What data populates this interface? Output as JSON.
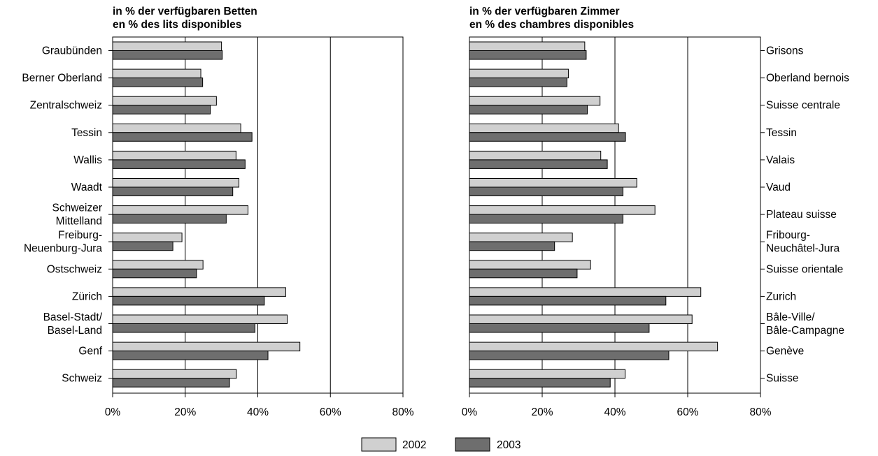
{
  "colors": {
    "s2002": "#d0d0d0",
    "s2003": "#6e6e6e",
    "stroke": "#000000"
  },
  "chart_data": [
    {
      "type": "bar",
      "orientation": "horizontal",
      "title_lines": [
        "in % der verfügbaren Betten",
        "en % des lits disponibles"
      ],
      "categories": [
        [
          "Graubünden"
        ],
        [
          "Berner Oberland"
        ],
        [
          "Zentralschweiz"
        ],
        [
          "Tessin"
        ],
        [
          "Wallis"
        ],
        [
          "Waadt"
        ],
        [
          "Schweizer",
          "Mittelland"
        ],
        [
          "Freiburg-",
          "Neuenburg-Jura"
        ],
        [
          "Ostschweiz"
        ],
        [
          "Zürich"
        ],
        [
          "Basel-Stadt/",
          "Basel-Land"
        ],
        [
          "Genf"
        ],
        [
          "Schweiz"
        ]
      ],
      "series": [
        {
          "name": "2002",
          "values": [
            30,
            24.3,
            28.6,
            35.3,
            34,
            34.8,
            37.3,
            19.1,
            24.9,
            47.7,
            48.1,
            51.6,
            34.1
          ]
        },
        {
          "name": "2003",
          "values": [
            30.2,
            24.8,
            26.9,
            38.4,
            36.5,
            33.1,
            31.3,
            16.6,
            23.1,
            41.8,
            39.2,
            42.8,
            32.2
          ]
        }
      ],
      "xlim": [
        0,
        80
      ],
      "xticks": [
        "0%",
        "20%",
        "40%",
        "60%",
        "80%"
      ],
      "grid": true,
      "category_label_side": "left"
    },
    {
      "type": "bar",
      "orientation": "horizontal",
      "title_lines": [
        "in % der verfügbaren Zimmer",
        "en % des chambres disponibles"
      ],
      "categories": [
        [
          "Grisons"
        ],
        [
          "Oberland bernois"
        ],
        [
          "Suisse centrale"
        ],
        [
          "Tessin"
        ],
        [
          "Valais"
        ],
        [
          "Vaud"
        ],
        [
          "Plateau suisse"
        ],
        [
          "Fribourg-",
          "Neuchâtel-Jura"
        ],
        [
          "Suisse orientale"
        ],
        [
          "Zurich"
        ],
        [
          "Bâle-Ville/",
          "Bâle-Campagne"
        ],
        [
          "Genève"
        ],
        [
          "Suisse"
        ]
      ],
      "series": [
        {
          "name": "2002",
          "values": [
            31.7,
            27.2,
            35.9,
            41,
            36.1,
            46,
            51,
            28.3,
            33.3,
            63.6,
            61.2,
            68.2,
            42.8
          ]
        },
        {
          "name": "2003",
          "values": [
            32.1,
            26.8,
            32.4,
            42.9,
            37.9,
            42.2,
            42.2,
            23.4,
            29.6,
            54,
            49.4,
            54.8,
            38.7
          ]
        }
      ],
      "xlim": [
        0,
        80
      ],
      "xticks": [
        "0%",
        "20%",
        "40%",
        "60%",
        "80%"
      ],
      "grid": true,
      "category_label_side": "right"
    }
  ],
  "legend": {
    "placement": "bottom-center",
    "items": [
      "2002",
      "2003"
    ]
  }
}
